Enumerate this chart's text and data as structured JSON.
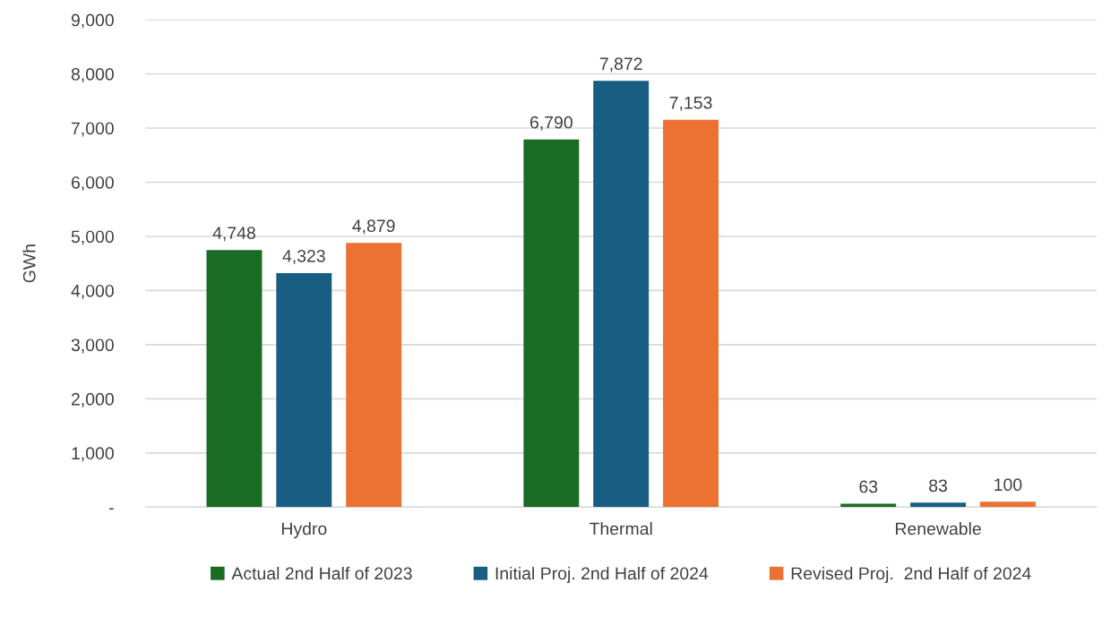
{
  "chart_data": {
    "type": "bar",
    "ylabel": "GWh",
    "categories": [
      "Hydro",
      "Thermal",
      "Renewable"
    ],
    "series": [
      {
        "name": "Actual 2nd Half of 2023",
        "color": "#1a6b24",
        "values": [
          4748,
          6790,
          63
        ],
        "value_labels": [
          "4,748",
          "6,790",
          "63"
        ]
      },
      {
        "name": "Initial Proj. 2nd Half of 2024",
        "color": "#175e82",
        "values": [
          4323,
          7872,
          83
        ],
        "value_labels": [
          "4,323",
          "7,872",
          "83"
        ]
      },
      {
        "name": "Revised Proj.  2nd Half of 2024",
        "color": "#eb7232",
        "values": [
          4879,
          7153,
          100
        ],
        "value_labels": [
          "4,879",
          "7,153",
          "100"
        ]
      }
    ],
    "ylim": [
      0,
      9000
    ],
    "yticks": [
      {
        "value": 0,
        "label": "-"
      },
      {
        "value": 1000,
        "label": "1,000"
      },
      {
        "value": 2000,
        "label": "2,000"
      },
      {
        "value": 3000,
        "label": "3,000"
      },
      {
        "value": 4000,
        "label": "4,000"
      },
      {
        "value": 5000,
        "label": "5,000"
      },
      {
        "value": 6000,
        "label": "6,000"
      },
      {
        "value": 7000,
        "label": "7,000"
      },
      {
        "value": 8000,
        "label": "8,000"
      },
      {
        "value": 9000,
        "label": "9,000"
      }
    ],
    "grid": "y",
    "legend": "bottom"
  }
}
